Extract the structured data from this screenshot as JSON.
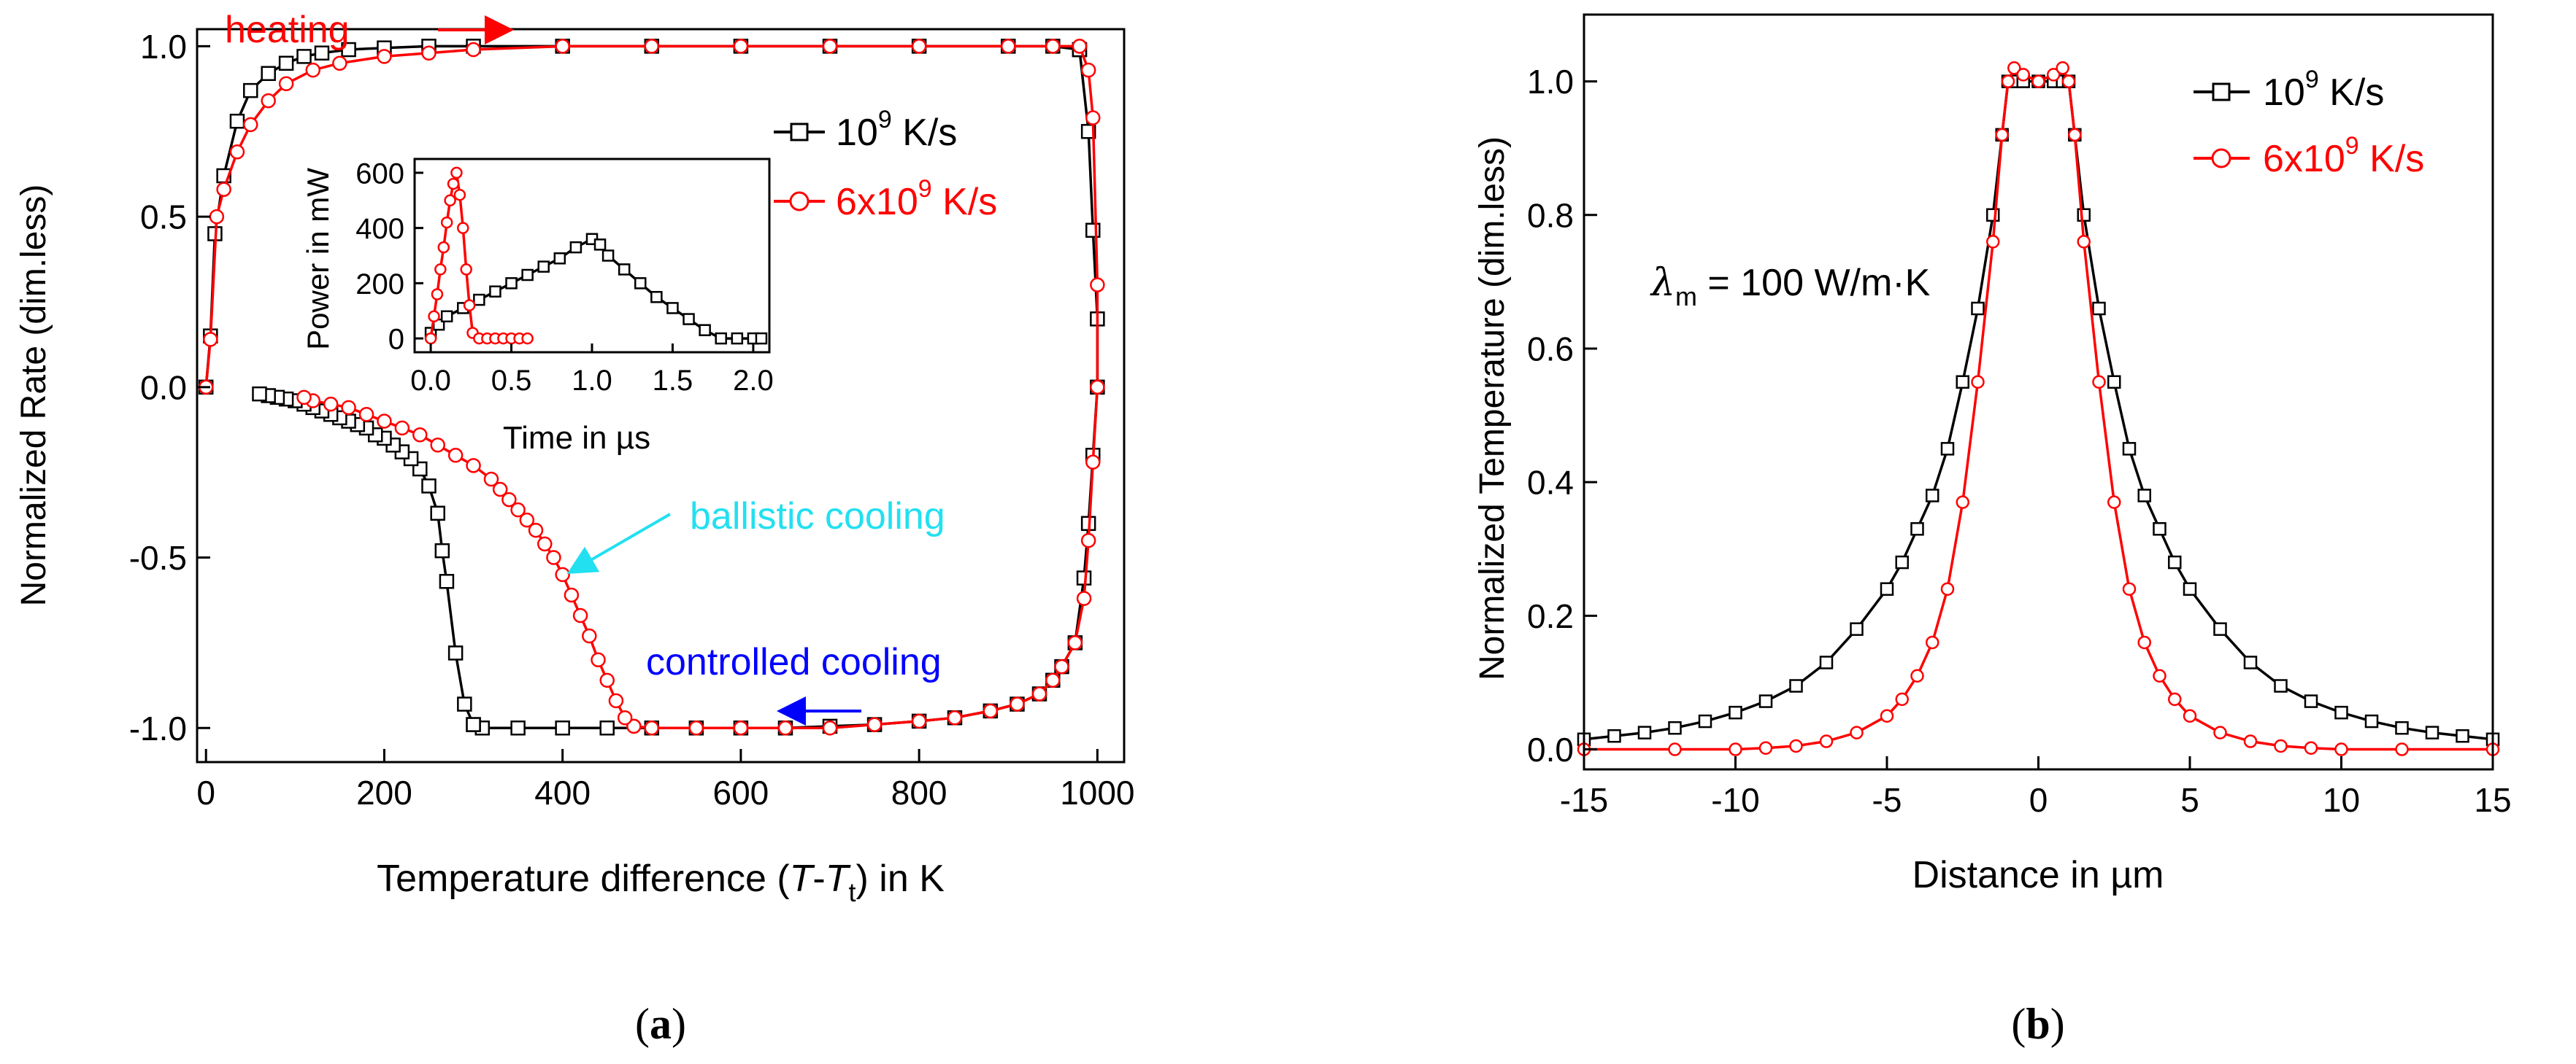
{
  "panel_a": {
    "label_letter": "a",
    "xlabel_pre": "Temperature difference (",
    "xlabel_T": "T",
    "xlabel_dash": "-",
    "xlabel_Tt": "T",
    "xlabel_sub": "t",
    "xlabel_post": ")  in K",
    "ylabel": "Normalized Rate (dim.less)",
    "xticks": [
      "0",
      "200",
      "400",
      "600",
      "800",
      "1000"
    ],
    "yticks": [
      "-1.0",
      "-0.5",
      "0.0",
      "0.5",
      "1.0"
    ],
    "legend": [
      {
        "base": "10",
        "sup": "9",
        "unit": " K/s",
        "color": "#000000"
      },
      {
        "base": "6x10",
        "sup": "9",
        "unit": " K/s",
        "color": "#ff0000"
      }
    ],
    "annotations": {
      "heating": "heating",
      "ballistic": "ballistic cooling",
      "controlled": "controlled cooling"
    },
    "inset": {
      "xlabel": "Time in µs",
      "ylabel": "Power in mW",
      "xticks": [
        "0.0",
        "0.5",
        "1.0",
        "1.5",
        "2.0"
      ],
      "yticks": [
        "0",
        "200",
        "400",
        "600"
      ]
    }
  },
  "panel_b": {
    "label_letter": "b",
    "xlabel": "Distance in µm",
    "ylabel": "Normalized Temperature (dim.less)",
    "xticks": [
      "-15",
      "-10",
      "-5",
      "0",
      "5",
      "10",
      "15"
    ],
    "yticks": [
      "0.0",
      "0.2",
      "0.4",
      "0.6",
      "0.8",
      "1.0"
    ],
    "legend": [
      {
        "base": "10",
        "sup": "9",
        "unit": " K/s",
        "color": "#000000"
      },
      {
        "base": "6x10",
        "sup": "9",
        "unit": " K/s",
        "color": "#ff0000"
      }
    ],
    "lambda_symbol": "λ",
    "lambda_sub": "m",
    "lambda_value": " = 100 W/m·K"
  },
  "chart_data": [
    {
      "type": "line",
      "title": "",
      "xlabel": "Temperature difference (T-Tt) in K",
      "ylabel": "Normalized Rate (dim.less)",
      "xlim": [
        -10,
        1030
      ],
      "ylim": [
        -1.1,
        1.05
      ],
      "series": [
        {
          "name": "10^9 K/s",
          "color": "#000000",
          "marker": "square",
          "segments": [
            {
              "x": [
                0,
                5,
                10,
                20,
                35,
                50,
                70,
                90,
                110,
                130,
                160,
                200,
                250,
                300,
                400,
                500,
                600,
                700,
                800,
                900,
                950,
                980
              ],
              "y": [
                0,
                0.15,
                0.45,
                0.62,
                0.78,
                0.87,
                0.92,
                0.95,
                0.97,
                0.98,
                0.99,
                0.995,
                1,
                1,
                1,
                1,
                1,
                1,
                1,
                1,
                1,
                0.99
              ]
            },
            {
              "x": [
                980,
                990,
                995,
                1000,
                1000,
                995,
                990,
                985,
                975,
                960,
                950,
                935,
                910,
                880,
                840,
                800,
                750,
                700,
                650,
                600,
                550,
                500,
                450,
                400,
                350,
                310,
                300
              ],
              "y": [
                0.99,
                0.75,
                0.46,
                0.2,
                0,
                -0.2,
                -0.4,
                -0.56,
                -0.75,
                -0.82,
                -0.86,
                -0.9,
                -0.93,
                -0.95,
                -0.97,
                -0.98,
                -0.99,
                -0.995,
                -1,
                -1,
                -1,
                -1,
                -1,
                -1,
                -1,
                -1,
                -0.99
              ]
            },
            {
              "x": [
                300,
                290,
                280,
                270,
                265,
                260,
                250,
                240,
                230,
                220,
                210,
                200,
                190,
                180,
                170,
                160,
                150,
                140,
                130,
                120,
                110,
                100,
                90,
                80,
                70,
                60
              ],
              "y": [
                -0.99,
                -0.93,
                -0.78,
                -0.57,
                -0.48,
                -0.37,
                -0.29,
                -0.24,
                -0.21,
                -0.19,
                -0.17,
                -0.15,
                -0.14,
                -0.12,
                -0.11,
                -0.1,
                -0.09,
                -0.08,
                -0.07,
                -0.06,
                -0.05,
                -0.04,
                -0.035,
                -0.03,
                -0.025,
                -0.02
              ]
            }
          ]
        },
        {
          "name": "6x10^9 K/s",
          "color": "#ff0000",
          "marker": "circle",
          "segments": [
            {
              "x": [
                0,
                5,
                12,
                20,
                35,
                50,
                70,
                90,
                120,
                150,
                200,
                250,
                300,
                400,
                500,
                600,
                700,
                800,
                900,
                950,
                980
              ],
              "y": [
                0,
                0.14,
                0.5,
                0.58,
                0.69,
                0.77,
                0.84,
                0.89,
                0.93,
                0.95,
                0.97,
                0.98,
                0.99,
                1,
                1,
                1,
                1,
                1,
                1,
                1,
                1
              ]
            },
            {
              "x": [
                980,
                990,
                995,
                1000,
                1000,
                995,
                990,
                985,
                975,
                960,
                950,
                935,
                910,
                880,
                840,
                800,
                750,
                700,
                650,
                600,
                550,
                500,
                480
              ],
              "y": [
                1,
                0.93,
                0.79,
                0.3,
                0,
                -0.22,
                -0.45,
                -0.62,
                -0.75,
                -0.82,
                -0.86,
                -0.9,
                -0.93,
                -0.95,
                -0.97,
                -0.98,
                -0.99,
                -1,
                -1,
                -1,
                -1,
                -1,
                -0.995
              ]
            },
            {
              "x": [
                480,
                470,
                460,
                450,
                440,
                430,
                420,
                410,
                400,
                390,
                380,
                370,
                360,
                350,
                340,
                330,
                320,
                300,
                280,
                260,
                240,
                220,
                200,
                180,
                160,
                140,
                120,
                110
              ],
              "y": [
                -0.995,
                -0.97,
                -0.92,
                -0.86,
                -0.8,
                -0.73,
                -0.67,
                -0.61,
                -0.55,
                -0.5,
                -0.46,
                -0.42,
                -0.39,
                -0.36,
                -0.33,
                -0.3,
                -0.27,
                -0.23,
                -0.2,
                -0.17,
                -0.14,
                -0.12,
                -0.1,
                -0.08,
                -0.06,
                -0.05,
                -0.04,
                -0.03
              ]
            }
          ]
        }
      ],
      "inset": {
        "type": "line",
        "xlabel": "Time in µs",
        "ylabel": "Power in mW",
        "xlim": [
          -0.1,
          2.1
        ],
        "ylim": [
          -50,
          650
        ],
        "series": [
          {
            "name": "10^9 K/s",
            "color": "#000000",
            "marker": "square",
            "x": [
              0,
              0.05,
              0.1,
              0.2,
              0.3,
              0.4,
              0.5,
              0.6,
              0.7,
              0.8,
              0.9,
              1.0,
              1.05,
              1.1,
              1.2,
              1.3,
              1.4,
              1.5,
              1.6,
              1.7,
              1.8,
              1.9,
              2.0,
              2.05
            ],
            "y": [
              20,
              50,
              80,
              110,
              140,
              170,
              200,
              230,
              260,
              290,
              330,
              360,
              340,
              300,
              250,
              200,
              150,
              110,
              70,
              30,
              0,
              0,
              0,
              0
            ]
          },
          {
            "name": "6x10^9 K/s",
            "color": "#ff0000",
            "marker": "circle",
            "x": [
              0,
              0.02,
              0.04,
              0.06,
              0.08,
              0.1,
              0.12,
              0.14,
              0.16,
              0.18,
              0.2,
              0.22,
              0.24,
              0.26,
              0.3,
              0.35,
              0.4,
              0.45,
              0.5,
              0.55,
              0.6
            ],
            "y": [
              0,
              80,
              160,
              250,
              330,
              420,
              500,
              560,
              600,
              520,
              400,
              250,
              120,
              20,
              0,
              0,
              0,
              0,
              0,
              0,
              0
            ]
          }
        ]
      },
      "annotations": [
        "heating",
        "ballistic cooling",
        "controlled cooling"
      ]
    },
    {
      "type": "line",
      "title": "",
      "xlabel": "Distance in µm",
      "ylabel": "Normalized Temperature (dim.less)",
      "xlim": [
        -15,
        15
      ],
      "ylim": [
        -0.03,
        1.1
      ],
      "series": [
        {
          "name": "10^9 K/s",
          "color": "#000000",
          "marker": "square",
          "x": [
            -15,
            -14,
            -13,
            -12,
            -11,
            -10,
            -9,
            -8,
            -7,
            -6,
            -5,
            -4.5,
            -4,
            -3.5,
            -3,
            -2.5,
            -2,
            -1.5,
            -1.2,
            -1,
            -0.8,
            -0.5,
            0,
            0.5,
            0.8,
            1,
            1.2,
            1.5,
            2,
            2.5,
            3,
            3.5,
            4,
            4.5,
            5,
            6,
            7,
            8,
            9,
            10,
            11,
            12,
            13,
            14,
            15
          ],
          "y": [
            0.015,
            0.02,
            0.025,
            0.032,
            0.042,
            0.055,
            0.072,
            0.095,
            0.13,
            0.18,
            0.24,
            0.28,
            0.33,
            0.38,
            0.45,
            0.55,
            0.66,
            0.8,
            0.92,
            1.0,
            1.0,
            1.0,
            1.0,
            1.0,
            1.0,
            1.0,
            0.92,
            0.8,
            0.66,
            0.55,
            0.45,
            0.38,
            0.33,
            0.28,
            0.24,
            0.18,
            0.13,
            0.095,
            0.072,
            0.055,
            0.042,
            0.032,
            0.025,
            0.02,
            0.015
          ]
        },
        {
          "name": "6x10^9 K/s",
          "color": "#ff0000",
          "marker": "circle",
          "x": [
            -15,
            -12,
            -10,
            -9,
            -8,
            -7,
            -6,
            -5,
            -4.5,
            -4,
            -3.5,
            -3,
            -2.5,
            -2,
            -1.5,
            -1.2,
            -1,
            -0.8,
            -0.5,
            0,
            0.5,
            0.8,
            1,
            1.2,
            1.5,
            2,
            2.5,
            3,
            3.5,
            4,
            4.5,
            5,
            6,
            7,
            8,
            9,
            10,
            12,
            15
          ],
          "y": [
            0,
            0,
            0,
            0.002,
            0.005,
            0.012,
            0.025,
            0.05,
            0.075,
            0.11,
            0.16,
            0.24,
            0.37,
            0.55,
            0.76,
            0.92,
            1.0,
            1.02,
            1.01,
            1.0,
            1.01,
            1.02,
            1.0,
            0.92,
            0.76,
            0.55,
            0.37,
            0.24,
            0.16,
            0.11,
            0.075,
            0.05,
            0.025,
            0.012,
            0.005,
            0.002,
            0,
            0,
            0
          ]
        }
      ],
      "annotations": [
        "λm = 100 W/m·K"
      ]
    }
  ]
}
